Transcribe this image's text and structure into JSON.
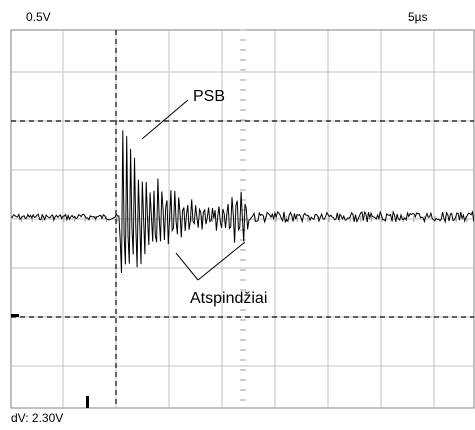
{
  "header": {
    "volts_per_div": "0.5V",
    "time_per_div": "5µs"
  },
  "footer": {
    "dv_readout": "dV: 2.30V"
  },
  "annotations": {
    "main_pulse": "PSB",
    "echoes": "Atspindžiai"
  },
  "colors": {
    "background": "#ffffff",
    "grid": "#c0c0c0",
    "trace": "#000000",
    "cursor": "#000000"
  },
  "cursors": {
    "horizontal_dV": "2.30V"
  }
}
